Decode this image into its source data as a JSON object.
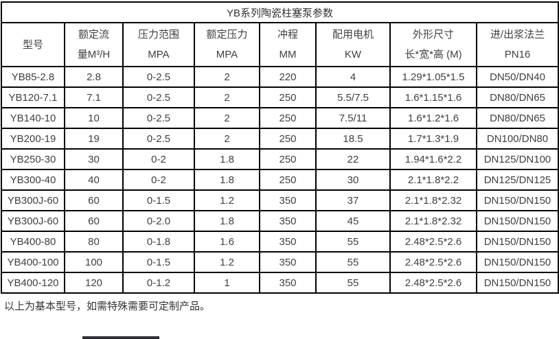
{
  "table": {
    "title": "YB系列陶瓷柱塞泵参数",
    "columns": [
      {
        "line1": "型号",
        "line2": ""
      },
      {
        "line1": "额定流",
        "line2": "量M³/H"
      },
      {
        "line1": "压力范围",
        "line2": "MPA"
      },
      {
        "line1": "额定压力",
        "line2": "MPA"
      },
      {
        "line1": "冲程",
        "line2": "MM"
      },
      {
        "line1": "配用电机",
        "line2": "KW"
      },
      {
        "line1": "外形尺寸",
        "line2": "长*宽*高 (M)"
      },
      {
        "line1": "进/出浆法兰",
        "line2": "PN16"
      }
    ],
    "rows": [
      [
        "YB85-2.8",
        "2.8",
        "0-2.5",
        "2",
        "220",
        "4",
        "1.29*1.05*1.5",
        "DN50/DN40"
      ],
      [
        "YB120-7.1",
        "7.1",
        "0-2.5",
        "2",
        "250",
        "5.5/7.5",
        "1.6*1.15*1.6",
        "DN80/DN65"
      ],
      [
        "YB140-10",
        "10",
        "0-2.5",
        "2",
        "250",
        "7.5/11",
        "1.6*1.2*1.6",
        "DN80/DN65"
      ],
      [
        "YB200-19",
        "19",
        "0-2.5",
        "2",
        "250",
        "18.5",
        "1.7*1.3*1.9",
        "DN100/DN80"
      ],
      [
        "YB250-30",
        "30",
        "0-2",
        "1.8",
        "250",
        "22",
        "1.94*1.6*2.2",
        "DN125/DN100"
      ],
      [
        "YB300-40",
        "40",
        "0-2",
        "1.8",
        "250",
        "30",
        "2.1*1.8*2.2",
        "DN125/DN125"
      ],
      [
        "YB300J-60",
        "60",
        "0-1.5",
        "1.2",
        "350",
        "37",
        "2.1*1.8*2.32",
        "DN150/DN150"
      ],
      [
        "YB300J-60",
        "60",
        "0-2.0",
        "1.8",
        "350",
        "45",
        "2.1*1.8*2.32",
        "DN150/DN150"
      ],
      [
        "YB400-80",
        "80",
        "0-1.8",
        "1.6",
        "350",
        "55",
        "2.48*2.5*2.6",
        "DN150/DN150"
      ],
      [
        "YB400-100",
        "100",
        "0-1.5",
        "1.2",
        "350",
        "55",
        "2.48*2.5*2.6",
        "DN150/DN150"
      ],
      [
        "YB400-120",
        "120",
        "0-1.2",
        "1",
        "350",
        "55",
        "2.48*2.5*2.6",
        "DN150/DN150"
      ]
    ]
  },
  "footer": {
    "note": "以上为基本型号，如需特殊需要可定制产品。"
  },
  "colors": {
    "border": "#000000",
    "text": "#404040",
    "background": "#ffffff"
  }
}
